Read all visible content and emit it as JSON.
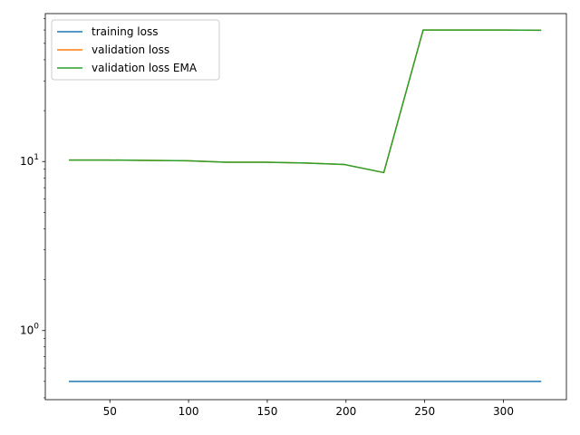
{
  "chart_data": {
    "type": "line",
    "title": "",
    "xlabel": "",
    "ylabel": "",
    "yscale": "log",
    "xlim": [
      9,
      340
    ],
    "ylim": [
      0.39,
      75
    ],
    "xticks": [
      50,
      100,
      150,
      200,
      250,
      300
    ],
    "yticks": [
      {
        "value": 1,
        "label": "10^0"
      },
      {
        "value": 10,
        "label": "10^1"
      }
    ],
    "grid": false,
    "legend_position": "top-left",
    "x": [
      24,
      49,
      74,
      99,
      124,
      149,
      174,
      199,
      224,
      249,
      274,
      299,
      324
    ],
    "series": [
      {
        "name": "training loss",
        "color": "#1f77b4",
        "values": [
          0.5,
          0.5,
          0.5,
          0.5,
          0.5,
          0.5,
          0.5,
          0.5,
          0.5,
          0.5,
          0.5,
          0.5,
          0.5
        ]
      },
      {
        "name": "validation loss",
        "color": "#ff7f0e",
        "values": [
          10.2,
          10.2,
          10.15,
          10.1,
          9.9,
          9.9,
          9.8,
          9.6,
          8.6,
          60,
          60,
          60,
          59.8
        ]
      },
      {
        "name": "validation loss EMA",
        "color": "#2ca02c",
        "values": [
          10.2,
          10.2,
          10.15,
          10.1,
          9.9,
          9.9,
          9.8,
          9.6,
          8.6,
          60,
          60,
          60,
          59.8
        ]
      }
    ]
  }
}
